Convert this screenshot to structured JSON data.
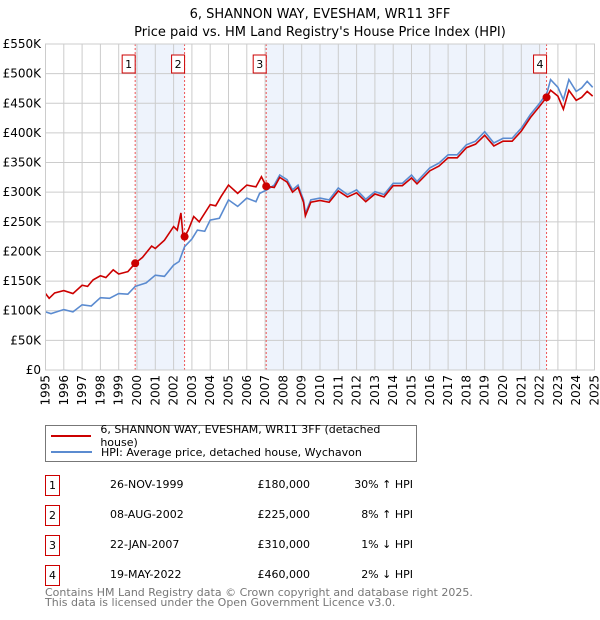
{
  "title": "6, SHANNON WAY, EVESHAM, WR11 3FF",
  "subtitle": "Price paid vs. HM Land Registry's House Price Index (HPI)",
  "chart_data": {
    "type": "line",
    "xlim": [
      1995,
      2025
    ],
    "ylim": [
      0,
      550000
    ],
    "ytick_labels": [
      "£0",
      "£50K",
      "£100K",
      "£150K",
      "£200K",
      "£250K",
      "£300K",
      "£350K",
      "£400K",
      "£450K",
      "£500K",
      "£550K"
    ],
    "xtick_labels": [
      "1995",
      "1996",
      "1997",
      "1998",
      "1999",
      "2000",
      "2001",
      "2002",
      "2003",
      "2004",
      "2005",
      "2006",
      "2007",
      "2008",
      "2009",
      "2010",
      "2011",
      "2012",
      "2013",
      "2014",
      "2015",
      "2016",
      "2017",
      "2018",
      "2019",
      "2020",
      "2021",
      "2022",
      "2023",
      "2024",
      "2025"
    ],
    "grid": true,
    "colors": {
      "property": "#cc0000",
      "hpi": "#5b8bd0",
      "shade": "#eef3fc"
    },
    "series": [
      {
        "name": "6, SHANNON WAY, EVESHAM, WR11 3FF (detached house)",
        "x": [
          1995,
          1995.2,
          1995.5,
          1996,
          1996.5,
          1997,
          1997.3,
          1997.6,
          1998,
          1998.3,
          1998.7,
          1999,
          1999.5,
          1999.9,
          2000.3,
          2000.8,
          2001,
          2001.5,
          2002,
          2002.2,
          2002.4,
          2002.5,
          2002.6,
          2002.8,
          2003.1,
          2003.4,
          2004,
          2004.3,
          2004.6,
          2005,
          2005.5,
          2006,
          2006.5,
          2006.8,
          2007.06,
          2007.5,
          2007.8,
          2008.2,
          2008.5,
          2008.8,
          2009.1,
          2009.2,
          2009.5,
          2010,
          2010.5,
          2011,
          2011.5,
          2012,
          2012.5,
          2013,
          2013.5,
          2014,
          2014.5,
          2015,
          2015.3,
          2016,
          2016.5,
          2017,
          2017.5,
          2018,
          2018.5,
          2019,
          2019.5,
          2020,
          2020.5,
          2021,
          2021.5,
          2022,
          2022.38,
          2022.6,
          2023,
          2023.3,
          2023.6,
          2024,
          2024.3,
          2024.6,
          2024.9
        ],
        "y": [
          129,
          121,
          130,
          134,
          129,
          143,
          141,
          152,
          159,
          156,
          169,
          162,
          166,
          180,
          190,
          209,
          205,
          219,
          242,
          236,
          265,
          231,
          225,
          236,
          259,
          250,
          279,
          277,
          293,
          312,
          298,
          312,
          309,
          326,
          310,
          308,
          325,
          317,
          300,
          308,
          283,
          260,
          283,
          286,
          283,
          302,
          292,
          299,
          284,
          297,
          292,
          311,
          311,
          324,
          314,
          336,
          344,
          358,
          358,
          375,
          381,
          396,
          378,
          386,
          386,
          403,
          426,
          445,
          460,
          472,
          462,
          440,
          472,
          455,
          460,
          470,
          462
        ]
      },
      {
        "name": "HPI: Average price, detached house, Wychavon",
        "x": [
          1995,
          1995.3,
          1996,
          1996.5,
          1997,
          1997.5,
          1998,
          1998.5,
          1999,
          1999.5,
          1999.9,
          2000.5,
          2001,
          2001.5,
          2002,
          2002.3,
          2002.6,
          2003,
          2003.3,
          2003.7,
          2004,
          2004.5,
          2005,
          2005.5,
          2006,
          2006.5,
          2006.7,
          2007.1,
          2007.5,
          2007.8,
          2008.2,
          2008.5,
          2008.8,
          2009.1,
          2009.2,
          2009.5,
          2010,
          2010.5,
          2011,
          2011.5,
          2012,
          2012.5,
          2013,
          2013.5,
          2014,
          2014.5,
          2015,
          2015.3,
          2016,
          2016.5,
          2017,
          2017.5,
          2018,
          2018.5,
          2019,
          2019.5,
          2020,
          2020.5,
          2021,
          2021.5,
          2022,
          2022.4,
          2022.6,
          2023,
          2023.3,
          2023.6,
          2024,
          2024.3,
          2024.6,
          2024.9
        ],
        "y": [
          98,
          95,
          102,
          98,
          110,
          108,
          122,
          121,
          129,
          128,
          141,
          147,
          160,
          158,
          177,
          183,
          208,
          221,
          236,
          234,
          253,
          256,
          287,
          276,
          290,
          284,
          298,
          304,
          312,
          329,
          321,
          304,
          312,
          287,
          264,
          287,
          290,
          287,
          307,
          296,
          304,
          288,
          301,
          296,
          315,
          315,
          329,
          318,
          341,
          349,
          363,
          363,
          380,
          386,
          402,
          383,
          391,
          391,
          408,
          431,
          450,
          467,
          490,
          477,
          456,
          490,
          470,
          476,
          487,
          477
        ]
      }
    ],
    "y_units": "thousands GBP",
    "sales": [
      {
        "n": "1",
        "date": "26-NOV-1999",
        "x": 1999.9,
        "price": "£180,000",
        "value": 180,
        "hpi": "30% ↑ HPI"
      },
      {
        "n": "2",
        "date": "08-AUG-2002",
        "x": 2002.6,
        "price": "£225,000",
        "value": 225,
        "hpi": "8% ↑ HPI"
      },
      {
        "n": "3",
        "date": "22-JAN-2007",
        "x": 2007.06,
        "price": "£310,000",
        "value": 310,
        "hpi": "1% ↓ HPI"
      },
      {
        "n": "4",
        "date": "19-MAY-2022",
        "x": 2022.38,
        "price": "£460,000",
        "value": 460,
        "hpi": "2% ↓ HPI"
      }
    ]
  },
  "legend": {
    "property": "6, SHANNON WAY, EVESHAM, WR11 3FF (detached house)",
    "hpi": "HPI: Average price, detached house, Wychavon"
  },
  "footer": {
    "line1": "Contains HM Land Registry data © Crown copyright and database right 2025.",
    "line2": "This data is licensed under the Open Government Licence v3.0."
  }
}
